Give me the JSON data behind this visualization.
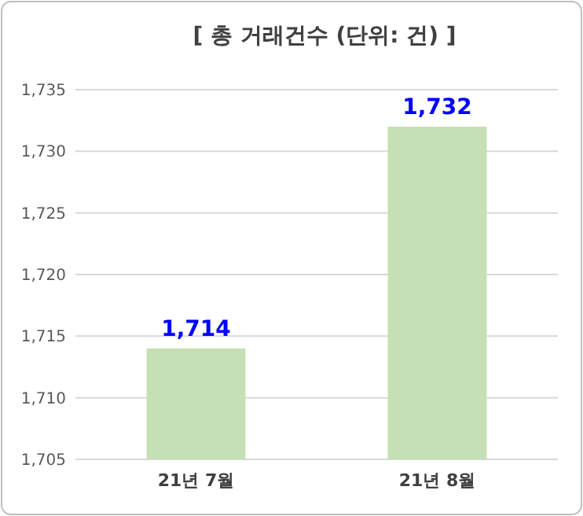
{
  "chart_data": {
    "type": "bar",
    "title": "[ 총 거래건수 (단위: 건) ]",
    "categories": [
      "21년 7월",
      "21년 8월"
    ],
    "values": [
      1714,
      1732
    ],
    "value_labels": [
      "1,714",
      "1,732"
    ],
    "color": "#c5e0b4",
    "ylim": [
      1705,
      1735
    ],
    "yticks": [
      {
        "value": 1705,
        "label": "1,705"
      },
      {
        "value": 1710,
        "label": "1,710"
      },
      {
        "value": 1715,
        "label": "1,715"
      },
      {
        "value": 1720,
        "label": "1,720"
      },
      {
        "value": 1725,
        "label": "1,725"
      },
      {
        "value": 1730,
        "label": "1,730"
      },
      {
        "value": 1735,
        "label": "1,735"
      }
    ],
    "grid": "y"
  }
}
